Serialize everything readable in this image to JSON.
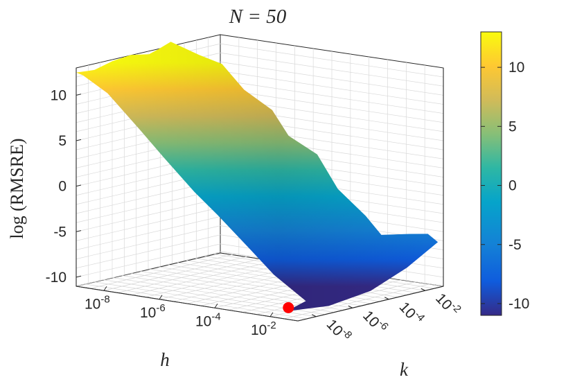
{
  "chart_data": {
    "type": "surface",
    "title": "N = 50",
    "xlabel": "h",
    "ylabel": "k",
    "zlabel": "log (RMSRE)",
    "x_scale": "log",
    "y_scale": "log",
    "xlim": [
      1e-09,
      0.1
    ],
    "ylim": [
      1e-09,
      0.1
    ],
    "zlim": [
      -11,
      13
    ],
    "x_ticks": [
      {
        "base": "10",
        "exp": "-8"
      },
      {
        "base": "10",
        "exp": "-6"
      },
      {
        "base": "10",
        "exp": "-4"
      },
      {
        "base": "10",
        "exp": "-2"
      }
    ],
    "y_ticks": [
      {
        "base": "10",
        "exp": "-8"
      },
      {
        "base": "10",
        "exp": "-6"
      },
      {
        "base": "10",
        "exp": "-4"
      },
      {
        "base": "10",
        "exp": "-2"
      }
    ],
    "z_ticks": [
      "10",
      "5",
      "0",
      "-5",
      "-10"
    ],
    "colorbar": {
      "colormap": "parula",
      "range": [
        -11,
        13
      ],
      "ticks": [
        "10",
        "5",
        "0",
        "-5",
        "-10"
      ],
      "colors": [
        "#352a87",
        "#0f5cdd",
        "#1481d6",
        "#06a4ca",
        "#2eb7a4",
        "#87bf77",
        "#d1bb59",
        "#fec832",
        "#f9fb0e"
      ]
    },
    "surface_profile_h_axis": [
      {
        "log10_h": -9,
        "z": 12.5
      },
      {
        "log10_h": -8,
        "z": 10.5
      },
      {
        "log10_h": -7,
        "z": 7.5
      },
      {
        "log10_h": -6,
        "z": 4.5
      },
      {
        "log10_h": -5,
        "z": 1.5
      },
      {
        "log10_h": -4,
        "z": -1.0
      },
      {
        "log10_h": -3,
        "z": -3.5
      },
      {
        "log10_h": -2,
        "z": -6.5
      },
      {
        "log10_h": -1,
        "z": -8.5
      }
    ],
    "minimum_point": {
      "log10_h": -2,
      "log10_k": -8,
      "z": -10.5,
      "color": "#ff0000"
    },
    "grid": true
  }
}
